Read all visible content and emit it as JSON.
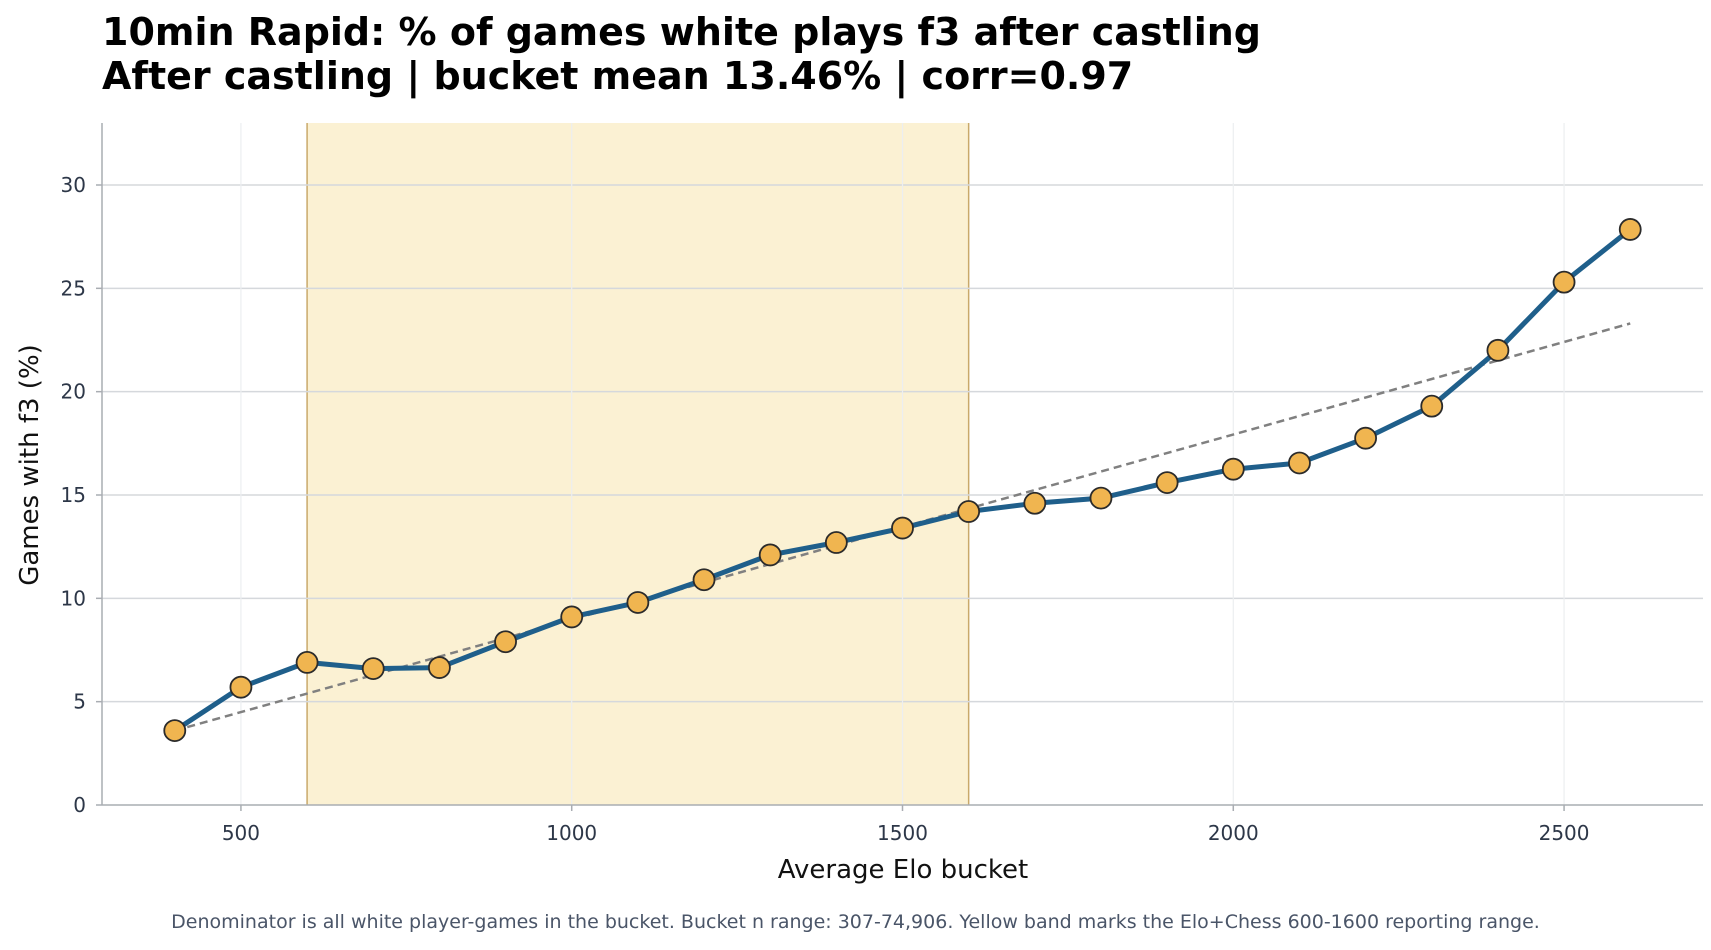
{
  "chart_data": {
    "type": "line",
    "title": "10min Rapid: % of games white plays f3 after castling",
    "subtitle": "After castling | bucket mean 13.46% | corr=0.97",
    "xlabel": "Average Elo bucket",
    "ylabel": "Games with f3 (%)",
    "xlim": [
      290,
      2710
    ],
    "ylim": [
      0,
      33
    ],
    "xticks": [
      500,
      1000,
      1500,
      2000,
      2500
    ],
    "yticks": [
      0,
      5,
      10,
      15,
      20,
      25,
      30
    ],
    "grid": true,
    "band": {
      "x_start": 600,
      "x_end": 1600,
      "color": "#fbf1d3",
      "edge_color": "#c9a96a"
    },
    "series": [
      {
        "type": "line",
        "color": "#1f5f8b",
        "marker_color": "#f0b550",
        "x": [
          400,
          500,
          600,
          700,
          800,
          900,
          1000,
          1100,
          1200,
          1300,
          1400,
          1500,
          1600,
          1700,
          1800,
          1900,
          2000,
          2100,
          2200,
          2300,
          2400,
          2500,
          2600
        ],
        "y": [
          3.6,
          5.7,
          6.9,
          6.6,
          6.65,
          7.9,
          9.1,
          9.8,
          10.9,
          12.1,
          12.7,
          13.4,
          14.2,
          14.6,
          14.85,
          15.6,
          16.25,
          16.55,
          17.75,
          19.3,
          22.0,
          25.3,
          27.85
        ]
      },
      {
        "type": "trend",
        "style": "dashed",
        "color": "#808080",
        "x": [
          400,
          2600
        ],
        "y": [
          3.6,
          23.3
        ]
      }
    ],
    "footnote": "Denominator is all white player-games in the bucket. Bucket n range: 307-74,906. Yellow band marks the Elo+Chess 600-1600 reporting range."
  }
}
